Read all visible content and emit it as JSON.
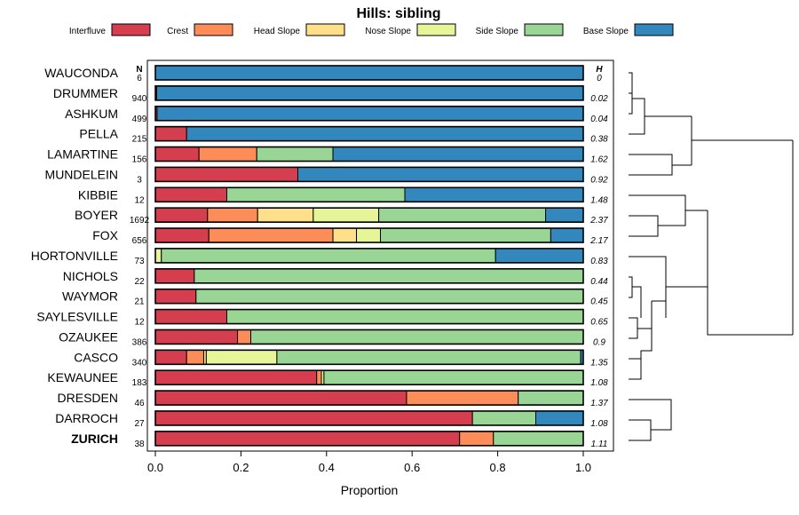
{
  "chart_data": {
    "type": "bar",
    "orientation": "horizontal",
    "stacked": true,
    "title": "Hills: sibling",
    "xlabel": "Proportion",
    "ylabel": "",
    "xlim": [
      0,
      1
    ],
    "xticks": [
      "0.0",
      "0.2",
      "0.4",
      "0.6",
      "0.8",
      "1.0"
    ],
    "n_header": "N",
    "h_header": "H",
    "legend_position": "top",
    "legend": [
      {
        "name": "Interfluve",
        "color": "#d53e4f"
      },
      {
        "name": "Crest",
        "color": "#fc8d59"
      },
      {
        "name": "Head Slope",
        "color": "#fee08b"
      },
      {
        "name": "Nose Slope",
        "color": "#e6f598"
      },
      {
        "name": "Side Slope",
        "color": "#99d594"
      },
      {
        "name": "Base Slope",
        "color": "#3288bd"
      }
    ],
    "rows": [
      {
        "label": "WAUCONDA",
        "n": "6",
        "h": "0",
        "values": [
          0,
          0,
          0,
          0,
          0,
          1.0
        ]
      },
      {
        "label": "DRUMMER",
        "n": "940",
        "h": "0.02",
        "values": [
          0.003,
          0,
          0,
          0,
          0,
          0.997
        ]
      },
      {
        "label": "ASHKUM",
        "n": "499",
        "h": "0.04",
        "values": [
          0.004,
          0,
          0,
          0,
          0,
          0.996
        ]
      },
      {
        "label": "PELLA",
        "n": "215",
        "h": "0.38",
        "values": [
          0.073,
          0,
          0,
          0,
          0,
          0.927
        ]
      },
      {
        "label": "LAMARTINE",
        "n": "156",
        "h": "1.62",
        "values": [
          0.102,
          0.135,
          0,
          0,
          0.178,
          0.585
        ]
      },
      {
        "label": "MUNDELEIN",
        "n": "3",
        "h": "0.92",
        "values": [
          0.333,
          0,
          0,
          0,
          0,
          0.667
        ]
      },
      {
        "label": "KIBBIE",
        "n": "12",
        "h": "1.48",
        "values": [
          0.167,
          0,
          0,
          0,
          0.416,
          0.417
        ]
      },
      {
        "label": "BOYER",
        "n": "1692",
        "h": "2.37",
        "values": [
          0.122,
          0.117,
          0.13,
          0.153,
          0.39,
          0.088
        ]
      },
      {
        "label": "FOX",
        "n": "656",
        "h": "2.17",
        "values": [
          0.125,
          0.29,
          0.055,
          0.056,
          0.398,
          0.076
        ]
      },
      {
        "label": "HORTONVILLE",
        "n": "73",
        "h": "0.83",
        "values": [
          0,
          0,
          0,
          0.014,
          0.781,
          0.205
        ]
      },
      {
        "label": "NICHOLS",
        "n": "22",
        "h": "0.44",
        "values": [
          0.091,
          0,
          0,
          0,
          0.909,
          0
        ]
      },
      {
        "label": "WAYMOR",
        "n": "21",
        "h": "0.45",
        "values": [
          0.095,
          0,
          0,
          0,
          0.905,
          0
        ]
      },
      {
        "label": "SAYLESVILLE",
        "n": "12",
        "h": "0.65",
        "values": [
          0.167,
          0,
          0,
          0,
          0.833,
          0
        ]
      },
      {
        "label": "OZAUKEE",
        "n": "386",
        "h": "0.9",
        "values": [
          0.192,
          0.031,
          0,
          0,
          0.777,
          0
        ]
      },
      {
        "label": "CASCO",
        "n": "340",
        "h": "1.35",
        "values": [
          0.073,
          0.04,
          0.006,
          0.165,
          0.71,
          0.006
        ]
      },
      {
        "label": "KEWAUNEE",
        "n": "183",
        "h": "1.08",
        "values": [
          0.377,
          0.011,
          0,
          0.006,
          0.606,
          0
        ]
      },
      {
        "label": "DRESDEN",
        "n": "46",
        "h": "1.37",
        "values": [
          0.587,
          0.261,
          0,
          0,
          0.152,
          0
        ]
      },
      {
        "label": "DARROCH",
        "n": "27",
        "h": "1.08",
        "values": [
          0.741,
          0,
          0,
          0,
          0.148,
          0.111
        ]
      },
      {
        "label": "ZURICH",
        "n": "38",
        "h": "1.11",
        "values": [
          0.711,
          0.079,
          0,
          0,
          0.21,
          0
        ],
        "bold": true
      }
    ]
  }
}
